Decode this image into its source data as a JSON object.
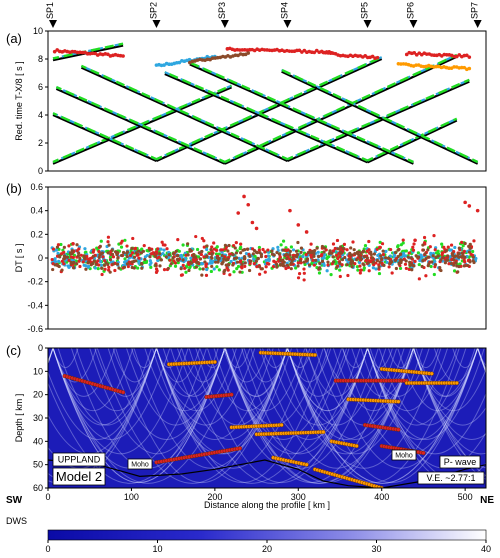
{
  "shot_points": [
    "SP1",
    "SP2",
    "SP3",
    "SP4",
    "SP5",
    "SP6",
    "SP7"
  ],
  "panel_labels": [
    "(a)",
    "(b)",
    "(c)"
  ],
  "colors": {
    "black": "#000000",
    "blue": "#2fa7e0",
    "green": "#22dd22",
    "red": "#dd2222",
    "brown": "#8b4a2a",
    "orange": "#ff9a00",
    "dws_low": "#0a0aa6",
    "dws_high": "#ffffff"
  },
  "chart_data": [
    {
      "type": "scatter",
      "panel": "(a)",
      "ylabel": "Red. time  T-X/8  [ s ]",
      "xlim": [
        0,
        525
      ],
      "ylim": [
        0,
        10
      ],
      "yticks": [
        0,
        2,
        4,
        6,
        8,
        10
      ],
      "shot_point_positions_km": [
        6,
        130,
        212,
        287,
        383,
        438,
        515
      ],
      "branches": [
        {
          "sp": 6,
          "dir": 1,
          "t0": 0.6,
          "slope": 0.0255,
          "x_end": 220
        },
        {
          "sp": 6,
          "dir": 1,
          "t0": 8.0,
          "slope": 0.0125,
          "x_end": 90
        },
        {
          "sp": 130,
          "dir": -1,
          "t0": 0.8,
          "slope": 0.0265,
          "x_end": 6
        },
        {
          "sp": 130,
          "dir": 1,
          "t0": 0.8,
          "slope": 0.027,
          "x_end": 400
        },
        {
          "sp": 212,
          "dir": -1,
          "t0": 0.6,
          "slope": 0.0265,
          "x_end": 10
        },
        {
          "sp": 212,
          "dir": 1,
          "t0": 0.6,
          "slope": 0.0275,
          "x_end": 490
        },
        {
          "sp": 287,
          "dir": -1,
          "t0": 0.8,
          "slope": 0.027,
          "x_end": 40
        },
        {
          "sp": 287,
          "dir": 1,
          "t0": 0.8,
          "slope": 0.026,
          "x_end": 505
        },
        {
          "sp": 383,
          "dir": -1,
          "t0": 0.7,
          "slope": 0.026,
          "x_end": 140
        },
        {
          "sp": 383,
          "dir": 1,
          "t0": 0.7,
          "slope": 0.028,
          "x_end": 490
        },
        {
          "sp": 438,
          "dir": -1,
          "t0": 0.6,
          "slope": 0.0265,
          "x_end": 170
        },
        {
          "sp": 515,
          "dir": -1,
          "t0": 0.6,
          "slope": 0.028,
          "x_end": 280
        }
      ],
      "late_phases": [
        {
          "x0": 8,
          "x1": 90,
          "y0": 8.6,
          "y1": 8.2,
          "color": "red"
        },
        {
          "x0": 130,
          "x1": 200,
          "y0": 7.5,
          "y1": 8.2,
          "color": "blue"
        },
        {
          "x0": 215,
          "x1": 340,
          "y0": 8.7,
          "y1": 8.5,
          "color": "red"
        },
        {
          "x0": 330,
          "x1": 395,
          "y0": 8.4,
          "y1": 8.1,
          "color": "red"
        },
        {
          "x0": 430,
          "x1": 505,
          "y0": 8.4,
          "y1": 8.2,
          "color": "red"
        },
        {
          "x0": 420,
          "x1": 505,
          "y0": 7.6,
          "y1": 7.3,
          "color": "orange"
        },
        {
          "x0": 170,
          "x1": 240,
          "y0": 7.8,
          "y1": 8.4,
          "color": "brown"
        }
      ]
    },
    {
      "type": "scatter",
      "panel": "(b)",
      "ylabel": "DT  [ s ]",
      "xlim": [
        0,
        525
      ],
      "ylim": [
        -0.6,
        0.6
      ],
      "yticks": [
        -0.6,
        -0.4,
        -0.2,
        0,
        0.2,
        0.4,
        0.6
      ],
      "series": [
        {
          "color": "green",
          "spread": 0.08
        },
        {
          "color": "blue",
          "spread": 0.06
        },
        {
          "color": "red",
          "spread": 0.1
        },
        {
          "color": "brown",
          "spread": 0.08
        }
      ],
      "outliers": [
        [
          235,
          0.52
        ],
        [
          240,
          0.45
        ],
        [
          228,
          0.38
        ],
        [
          245,
          0.3
        ],
        [
          250,
          0.25
        ],
        [
          290,
          0.4
        ],
        [
          300,
          0.28
        ],
        [
          310,
          0.22
        ],
        [
          500,
          0.47
        ],
        [
          505,
          0.44
        ],
        [
          515,
          0.4
        ],
        [
          30,
          0.12
        ],
        [
          130,
          0.05
        ],
        [
          440,
          0.15
        ]
      ]
    },
    {
      "type": "heatmap",
      "panel": "(c)",
      "xlabel": "Distance along the profile  [ km ]",
      "ylabel": "Depth  [ km ]",
      "xlim": [
        0,
        525
      ],
      "ylim": [
        0,
        60
      ],
      "xticks": [
        0,
        100,
        200,
        300,
        400,
        500
      ],
      "yticks": [
        0,
        10,
        20,
        30,
        40,
        50,
        60
      ],
      "colorbar": {
        "label": "DWS",
        "min": 0,
        "max": 40,
        "ticks": [
          0,
          10,
          20,
          30,
          40
        ]
      },
      "moho": [
        [
          0,
          48
        ],
        [
          60,
          50
        ],
        [
          110,
          55
        ],
        [
          160,
          54
        ],
        [
          200,
          52
        ],
        [
          260,
          48
        ],
        [
          300,
          52
        ],
        [
          330,
          57
        ],
        [
          360,
          59
        ],
        [
          400,
          60
        ],
        [
          450,
          57
        ],
        [
          500,
          52
        ],
        [
          525,
          50
        ]
      ],
      "reflectors": [
        {
          "x0": 20,
          "x1": 90,
          "z0": 12,
          "z1": 19,
          "color": "red"
        },
        {
          "x0": 145,
          "x1": 200,
          "z0": 7,
          "z1": 6,
          "color": "orange"
        },
        {
          "x0": 255,
          "x1": 320,
          "z0": 2,
          "z1": 3,
          "color": "orange"
        },
        {
          "x0": 190,
          "x1": 220,
          "z0": 21,
          "z1": 20,
          "color": "red"
        },
        {
          "x0": 345,
          "x1": 430,
          "z0": 14,
          "z1": 14,
          "color": "red"
        },
        {
          "x0": 400,
          "x1": 460,
          "z0": 9,
          "z1": 11,
          "color": "orange"
        },
        {
          "x0": 430,
          "x1": 490,
          "z0": 15,
          "z1": 15,
          "color": "orange"
        },
        {
          "x0": 360,
          "x1": 420,
          "z0": 22,
          "z1": 23,
          "color": "orange"
        },
        {
          "x0": 220,
          "x1": 280,
          "z0": 34,
          "z1": 33,
          "color": "orange"
        },
        {
          "x0": 250,
          "x1": 330,
          "z0": 37,
          "z1": 36,
          "color": "orange"
        },
        {
          "x0": 380,
          "x1": 420,
          "z0": 33,
          "z1": 35,
          "color": "red"
        },
        {
          "x0": 340,
          "x1": 370,
          "z0": 40,
          "z1": 42,
          "color": "orange"
        },
        {
          "x0": 130,
          "x1": 230,
          "z0": 49,
          "z1": 43,
          "color": "red"
        },
        {
          "x0": 400,
          "x1": 450,
          "z0": 42,
          "z1": 45,
          "color": "red"
        },
        {
          "x0": 270,
          "x1": 310,
          "z0": 47,
          "z1": 50,
          "color": "orange"
        },
        {
          "x0": 320,
          "x1": 400,
          "z0": 52,
          "z1": 60,
          "color": "orange"
        }
      ],
      "annotations": {
        "region": "UPPLAND",
        "model": "Model 2",
        "moho_label": "Moho",
        "wave": "P- wave",
        "ve": "V.E. ~2.77:1",
        "sw": "SW",
        "ne": "NE"
      }
    }
  ]
}
